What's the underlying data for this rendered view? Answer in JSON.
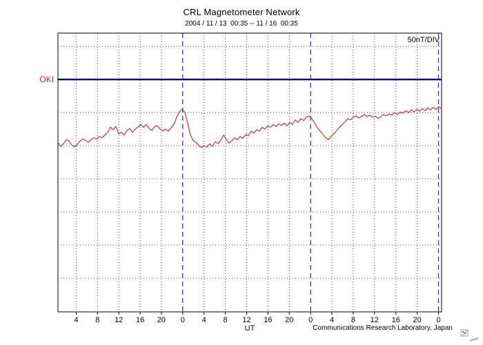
{
  "title": "CRL Magnetometer Network",
  "subtitle": "2004 / 11 / 13  00:35 -- 11 / 16  00:35",
  "scale_label": "50nT/DIV",
  "station_label": "OKI",
  "xlabel": "UT",
  "credit": "Communications Research Laboratory, Japan",
  "chart_data": {
    "type": "line",
    "title": "CRL Magnetometer Network",
    "subtitle": "2004 / 11 / 13  00:35 -- 11 / 16  00:35",
    "station": "OKI",
    "scale": "50nT/DIV",
    "xlabel": "UT",
    "x_tick_labels": [
      "4",
      "8",
      "12",
      "16",
      "20",
      "0",
      "4",
      "8",
      "12",
      "16",
      "20",
      "0",
      "4",
      "8",
      "12",
      "16",
      "20",
      "0"
    ],
    "x_ticks": [
      {
        "t": 4,
        "label": "4"
      },
      {
        "t": 8,
        "label": "8"
      },
      {
        "t": 12,
        "label": "12"
      },
      {
        "t": 16,
        "label": "16"
      },
      {
        "t": 20,
        "label": "20"
      },
      {
        "t": 24,
        "label": "0"
      },
      {
        "t": 28,
        "label": "4"
      },
      {
        "t": 32,
        "label": "8"
      },
      {
        "t": 36,
        "label": "12"
      },
      {
        "t": 40,
        "label": "16"
      },
      {
        "t": 44,
        "label": "20"
      },
      {
        "t": 48,
        "label": "0"
      },
      {
        "t": 52,
        "label": "4"
      },
      {
        "t": 56,
        "label": "8"
      },
      {
        "t": 60,
        "label": "12"
      },
      {
        "t": 64,
        "label": "16"
      },
      {
        "t": 68,
        "label": "20"
      },
      {
        "t": 72,
        "label": "0"
      }
    ],
    "xlim_hours": [
      0.583,
      72.583
    ],
    "ylim_nT": [
      -351,
      70
    ],
    "nT_per_division": 50,
    "baseline_nT": 0,
    "h_gridlines_nT": [
      50,
      -50,
      -100,
      -150,
      -200,
      -250,
      -300
    ],
    "day_boundaries_t": [
      24,
      48,
      72
    ],
    "grid": "dotted",
    "series": {
      "name": "OKI",
      "t_start_hours": 0.583,
      "t_step_hours": 0.518,
      "values_nT": [
        -95,
        -101,
        -97,
        -91,
        -93,
        -99,
        -102,
        -98,
        -93,
        -90,
        -92,
        -95,
        -91,
        -88,
        -90,
        -86,
        -88,
        -84,
        -80,
        -72,
        -76,
        -71,
        -82,
        -80,
        -84,
        -77,
        -74,
        -80,
        -75,
        -72,
        -68,
        -72,
        -68,
        -74,
        -77,
        -71,
        -70,
        -75,
        -78,
        -75,
        -78,
        -73,
        -68,
        -57,
        -49,
        -45,
        -50,
        -66,
        -84,
        -92,
        -95,
        -99,
        -103,
        -100,
        -102,
        -97,
        -101,
        -94,
        -97,
        -92,
        -84,
        -90,
        -96,
        -93,
        -88,
        -91,
        -86,
        -89,
        -83,
        -85,
        -78,
        -81,
        -76,
        -78,
        -72,
        -75,
        -70,
        -72,
        -68,
        -71,
        -67,
        -69,
        -66,
        -70,
        -65,
        -68,
        -61,
        -65,
        -59,
        -62,
        -57,
        -55,
        -59,
        -66,
        -73,
        -78,
        -83,
        -88,
        -91,
        -86,
        -82,
        -77,
        -72,
        -68,
        -64,
        -59,
        -61,
        -57,
        -55,
        -58,
        -56,
        -53,
        -56,
        -54,
        -57,
        -55,
        -59,
        -56,
        -53,
        -55,
        -52,
        -54,
        -50,
        -53,
        -49,
        -51,
        -47,
        -50,
        -46,
        -49,
        -45,
        -48,
        -44,
        -47,
        -43,
        -46,
        -42,
        -45,
        -41,
        -44
      ]
    },
    "colors": {
      "trace": "#cc2222",
      "baseline": "#000099",
      "day_line": "#4040cc",
      "grid": "#404040",
      "station_label": "#cc2222"
    }
  }
}
